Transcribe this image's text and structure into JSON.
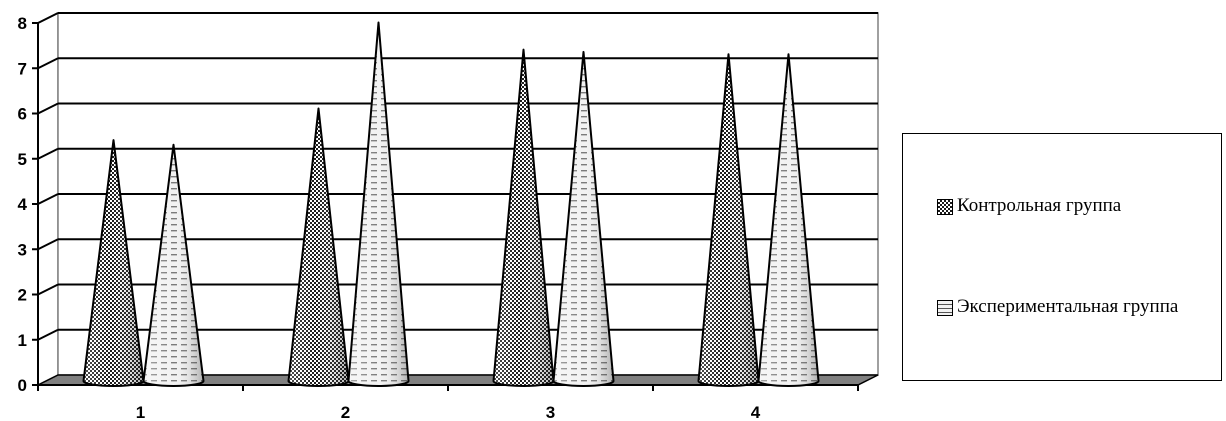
{
  "chart_data": {
    "type": "bar",
    "shape": "cone",
    "categories": [
      "1",
      "2",
      "3",
      "4"
    ],
    "series": [
      {
        "name": "Контрольная группа",
        "values": [
          5.3,
          6.0,
          7.3,
          7.2
        ],
        "pattern": "checker"
      },
      {
        "name": "Экспериментальная группа",
        "values": [
          5.2,
          7.9,
          7.25,
          7.2
        ],
        "pattern": "dashes"
      }
    ],
    "y_ticks": [
      "0",
      "1",
      "2",
      "3",
      "4",
      "5",
      "6",
      "7",
      "8"
    ],
    "ylim": [
      0,
      8
    ],
    "grid": true,
    "legend_position": "right",
    "title": "",
    "xlabel": "",
    "ylabel": ""
  }
}
